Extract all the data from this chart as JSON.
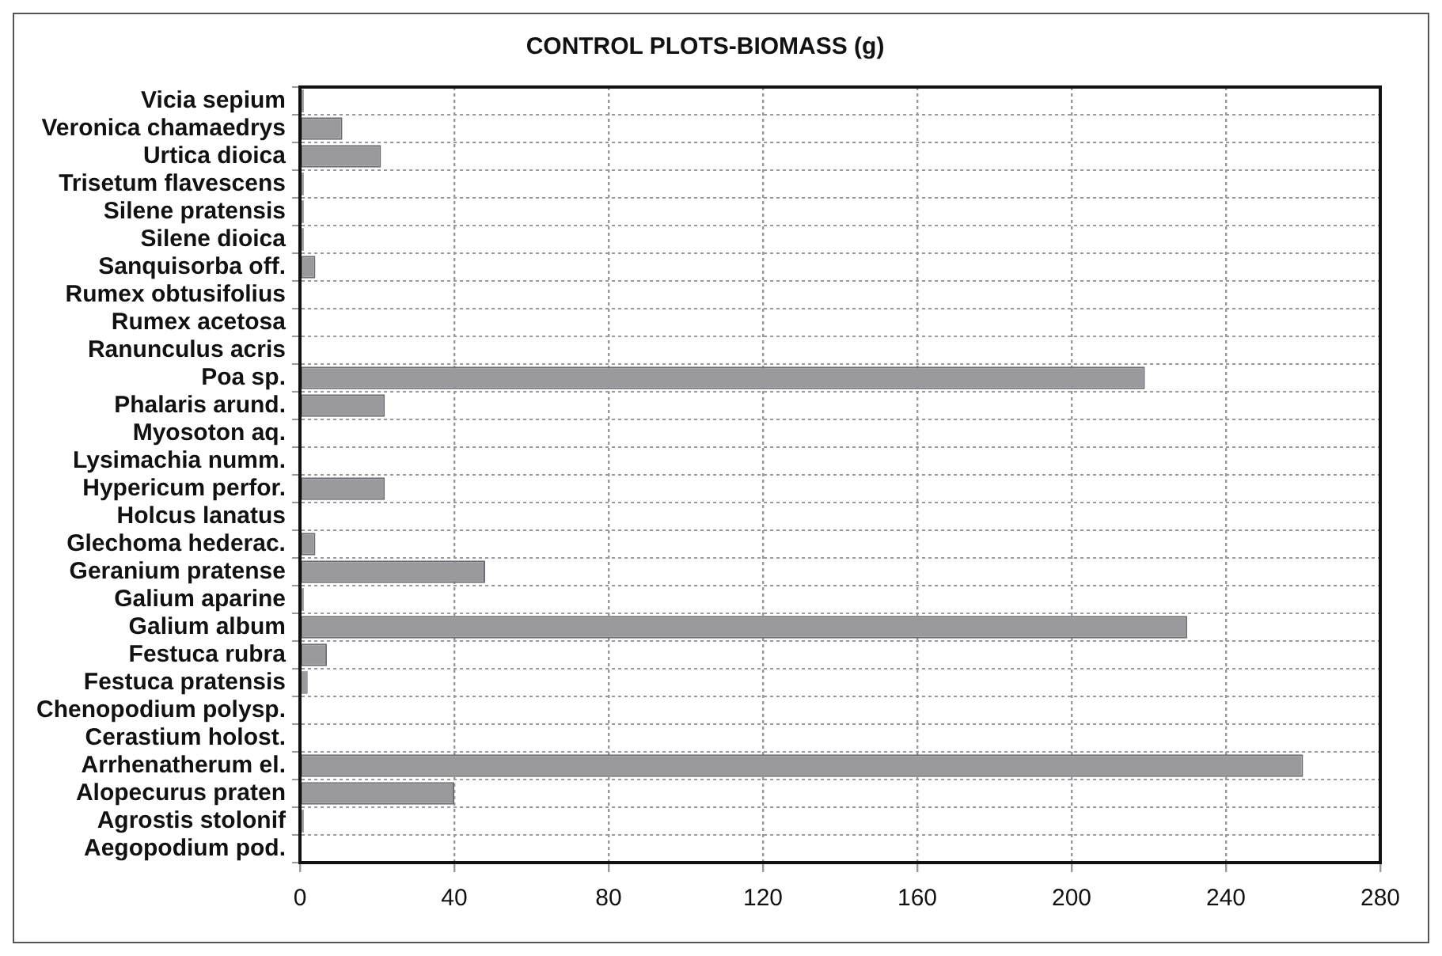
{
  "chart_data": {
    "type": "bar",
    "orientation": "horizontal",
    "title": "CONTROL PLOTS-BIOMASS (g)",
    "categories": [
      "Vicia sepium",
      "Veronica chamaedrys",
      "Urtica dioica",
      "Trisetum flavescens",
      "Silene pratensis",
      "Silene dioica",
      "Sanquisorba off.",
      "Rumex obtusifolius",
      "Rumex acetosa",
      "Ranunculus acris",
      "Poa sp.",
      "Phalaris arund.",
      "Myosoton aq.",
      "Lysimachia numm.",
      "Hypericum perfor.",
      "Holcus lanatus",
      "Glechoma hederac.",
      "Geranium pratense",
      "Galium aparine",
      "Galium album",
      "Festuca rubra",
      "Festuca pratensis",
      "Chenopodium polysp.",
      "Cerastium holost.",
      "Arrhenatherum el.",
      "Alopecurus praten",
      "Agrostis stolonif",
      "Aegopodium pod."
    ],
    "values": [
      1,
      11,
      21,
      1,
      1,
      1,
      4,
      0,
      0,
      0,
      219,
      22,
      0,
      0,
      22,
      0,
      4,
      48,
      1,
      230,
      7,
      2,
      0,
      0,
      260,
      40,
      1,
      0
    ],
    "color": "#9a9a9e",
    "xlim": [
      0,
      280
    ],
    "xticks": [
      0,
      40,
      80,
      120,
      160,
      200,
      240,
      280
    ],
    "grid": true
  }
}
